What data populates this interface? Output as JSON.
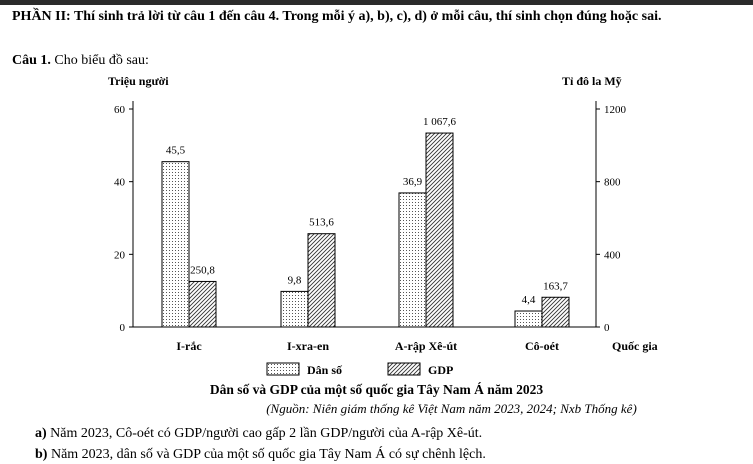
{
  "heading": "PHẦN II: Thí sinh trả lời từ câu 1 đến câu 4. Trong mỗi ý a), b), c), d) ở mỗi câu, thí sinh chọn đúng hoặc sai.",
  "question": {
    "label": "Câu 1.",
    "text": " Cho biểu đồ sau:"
  },
  "chart_data": {
    "type": "bar",
    "categories": [
      "I-rắc",
      "I-xra-en",
      "A-rập Xê-út",
      "Cô-oét"
    ],
    "series": [
      {
        "name": "Dân số",
        "axis": "left",
        "values": [
          45.5,
          9.8,
          36.9,
          4.4
        ],
        "labels": [
          "45,5",
          "9,8",
          "36,9",
          "4,4"
        ]
      },
      {
        "name": "GDP",
        "axis": "right",
        "values": [
          250.8,
          513.6,
          1067.6,
          163.7
        ],
        "labels": [
          "250,8",
          "513,6",
          "1 067,6",
          "163,7"
        ]
      }
    ],
    "y_left": {
      "label": "Triệu người",
      "min": 0,
      "max": 60,
      "ticks": [
        0,
        20,
        40,
        60
      ]
    },
    "y_right": {
      "label": "Tỉ đô la Mỹ",
      "min": 0,
      "max": 1200,
      "ticks": [
        0,
        400,
        800,
        1200
      ]
    },
    "x_label": "Quốc gia",
    "legend_position": "bottom",
    "title": "Dân số và GDP của một số quốc gia Tây Nam Á năm 2023",
    "source": "(Nguồn: Niên giám thống kê Việt Nam năm 2023, 2024; Nxb Thống kê)"
  },
  "statements": [
    {
      "label": "a)",
      "text": " Năm 2023, Cô-oét có GDP/người cao gấp 2 lần GDP/người của A-rập Xê-út."
    },
    {
      "label": "b)",
      "text": " Năm 2023, dân số và GDP của một số quốc gia Tây Nam Á có sự chênh lệch."
    }
  ]
}
